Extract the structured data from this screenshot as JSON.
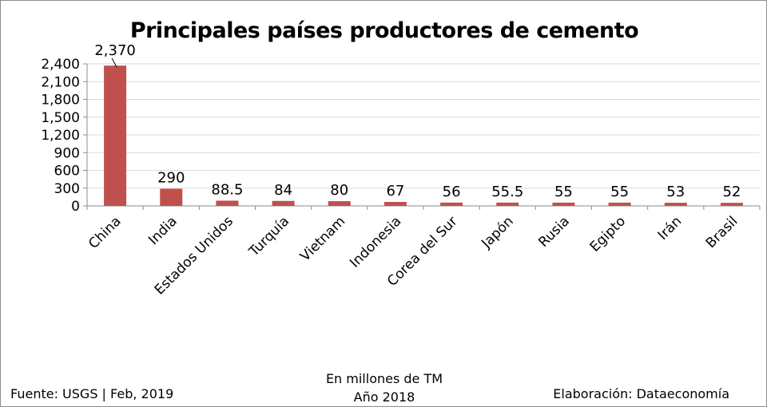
{
  "chart_data": {
    "type": "bar",
    "title": "Principales países productores de cemento",
    "categories": [
      "China",
      "India",
      "Estados Unidos",
      "Turquía",
      "Vietnam",
      "Indonesia",
      "Corea del Sur",
      "Japón",
      "Rusia",
      "Egipto",
      "Irán",
      "Brasil"
    ],
    "values": [
      2370,
      290,
      88.5,
      84,
      80,
      67,
      56,
      55.5,
      55,
      55,
      53,
      52
    ],
    "data_labels": [
      "2,370",
      "290",
      "88.5",
      "84",
      "80",
      "67",
      "56",
      "55.5",
      "55",
      "55",
      "53",
      "52"
    ],
    "ylim": [
      0,
      2400
    ],
    "yticks": [
      0,
      300,
      600,
      900,
      1200,
      1500,
      1800,
      2100,
      2400
    ],
    "ytick_labels": [
      "0",
      "300",
      "600",
      "900",
      "1,200",
      "1,500",
      "1,800",
      "2,100",
      "2,400"
    ],
    "grid": true,
    "bar_color": "#c0504d",
    "grid_color": "#d9d9d9"
  },
  "footer": {
    "source": "Fuente:  USGS | Feb, 2019",
    "units_line1": "En millones de TM",
    "units_line2": "Año 2018",
    "credit": "Elaboración: Dataeconomía"
  }
}
